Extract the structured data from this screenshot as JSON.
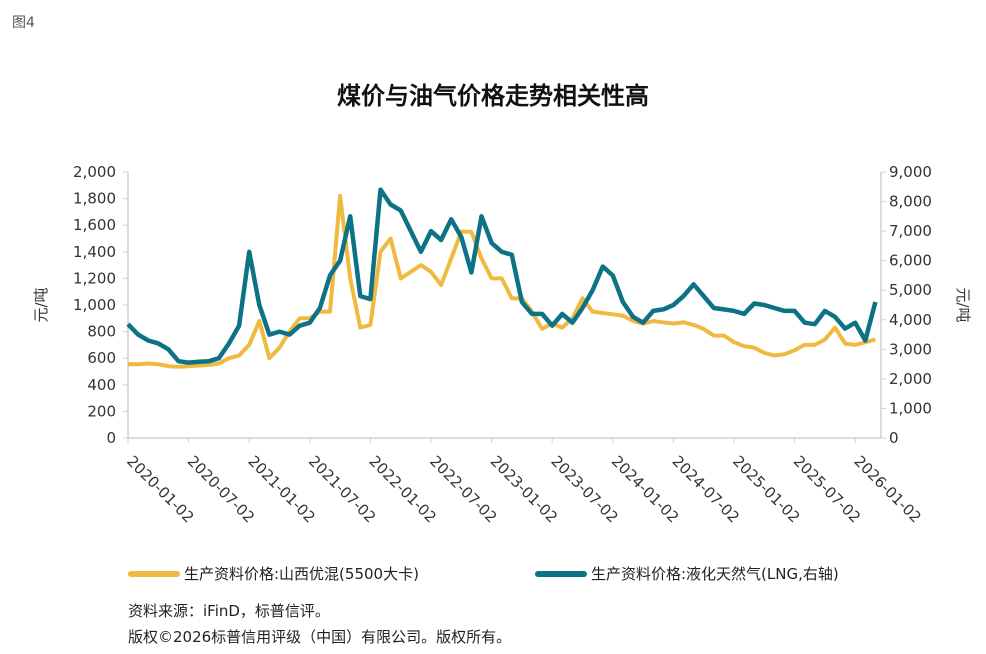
{
  "figure_label": "图4",
  "footer": {
    "source": "资料来源：iFinD，标普信评。",
    "copyright": "版权©2026标普信用评级（中国）有限公司。版权所有。"
  },
  "chart_data": {
    "type": "line",
    "title": "煤价与油气价格走势相关性高",
    "ylabel": "元/吨",
    "y2label": "元/吨",
    "ylim": [
      0,
      2000
    ],
    "y2lim": [
      0,
      9000
    ],
    "yticks": [
      "0",
      "200",
      "400",
      "600",
      "800",
      "1,000",
      "1,200",
      "1,400",
      "1,600",
      "1,800",
      "2,000"
    ],
    "y2ticks": [
      "0",
      "1,000",
      "2,000",
      "3,000",
      "4,000",
      "5,000",
      "6,000",
      "7,000",
      "8,000",
      "9,000"
    ],
    "xticks": [
      "2020-01-02",
      "2020-07-02",
      "2021-01-02",
      "2021-07-02",
      "2022-01-02",
      "2022-07-02",
      "2023-01-02",
      "2023-07-02",
      "2024-01-02",
      "2024-07-02",
      "2025-01-02",
      "2025-07-02",
      "2026-01-02"
    ],
    "grid": false,
    "legend_position": "bottom",
    "x": [
      "2020-01",
      "2020-02",
      "2020-03",
      "2020-04",
      "2020-05",
      "2020-06",
      "2020-07",
      "2020-08",
      "2020-09",
      "2020-10",
      "2020-11",
      "2020-12",
      "2021-01",
      "2021-02",
      "2021-03",
      "2021-04",
      "2021-05",
      "2021-06",
      "2021-07",
      "2021-08",
      "2021-09",
      "2021-10",
      "2021-11",
      "2021-12",
      "2022-01",
      "2022-02",
      "2022-03",
      "2022-04",
      "2022-05",
      "2022-06",
      "2022-07",
      "2022-08",
      "2022-09",
      "2022-10",
      "2022-11",
      "2022-12",
      "2023-01",
      "2023-02",
      "2023-03",
      "2023-04",
      "2023-05",
      "2023-06",
      "2023-07",
      "2023-08",
      "2023-09",
      "2023-10",
      "2023-11",
      "2023-12",
      "2024-01",
      "2024-02",
      "2024-03",
      "2024-04",
      "2024-05",
      "2024-06",
      "2024-07",
      "2024-08",
      "2024-09",
      "2024-10",
      "2024-11",
      "2024-12",
      "2025-01",
      "2025-02",
      "2025-03",
      "2025-04",
      "2025-05",
      "2025-06",
      "2025-07",
      "2025-08",
      "2025-09",
      "2025-10",
      "2025-11",
      "2025-12",
      "2026-01",
      "2026-02",
      "2026-03"
    ],
    "series": [
      {
        "name": "生产资料价格:山西优混(5500大卡)",
        "axis": "left",
        "color": "#F0B940",
        "values": [
          555,
          555,
          560,
          555,
          540,
          535,
          540,
          545,
          550,
          560,
          600,
          620,
          700,
          880,
          600,
          680,
          800,
          900,
          900,
          950,
          950,
          1820,
          1200,
          830,
          850,
          1400,
          1500,
          1200,
          1250,
          1300,
          1250,
          1150,
          1350,
          1550,
          1550,
          1350,
          1200,
          1200,
          1050,
          1050,
          950,
          820,
          860,
          830,
          900,
          1050,
          950,
          940,
          930,
          920,
          880,
          860,
          880,
          870,
          860,
          870,
          850,
          820,
          770,
          770,
          720,
          690,
          680,
          640,
          620,
          630,
          660,
          700,
          700,
          740,
          830,
          710,
          700,
          720,
          740
        ]
      },
      {
        "name": "生产资料价格:液化天然气(LNG,右轴)",
        "axis": "right",
        "color": "#0E7286",
        "values": [
          3850,
          3500,
          3300,
          3200,
          3000,
          2600,
          2550,
          2580,
          2600,
          2700,
          3200,
          3800,
          6300,
          4500,
          3500,
          3600,
          3500,
          3800,
          3900,
          4400,
          5500,
          6000,
          7500,
          4800,
          4700,
          8400,
          7900,
          7700,
          7000,
          6300,
          7000,
          6700,
          7400,
          6800,
          5600,
          7500,
          6600,
          6300,
          6200,
          4600,
          4200,
          4200,
          3800,
          4200,
          3900,
          4400,
          5000,
          5800,
          5500,
          4600,
          4100,
          3900,
          4300,
          4350,
          4500,
          4800,
          5200,
          4800,
          4400,
          4350,
          4300,
          4200,
          4550,
          4500,
          4400,
          4300,
          4300,
          3900,
          3850,
          4300,
          4100,
          3700,
          3900,
          3300,
          4600
        ]
      }
    ]
  }
}
